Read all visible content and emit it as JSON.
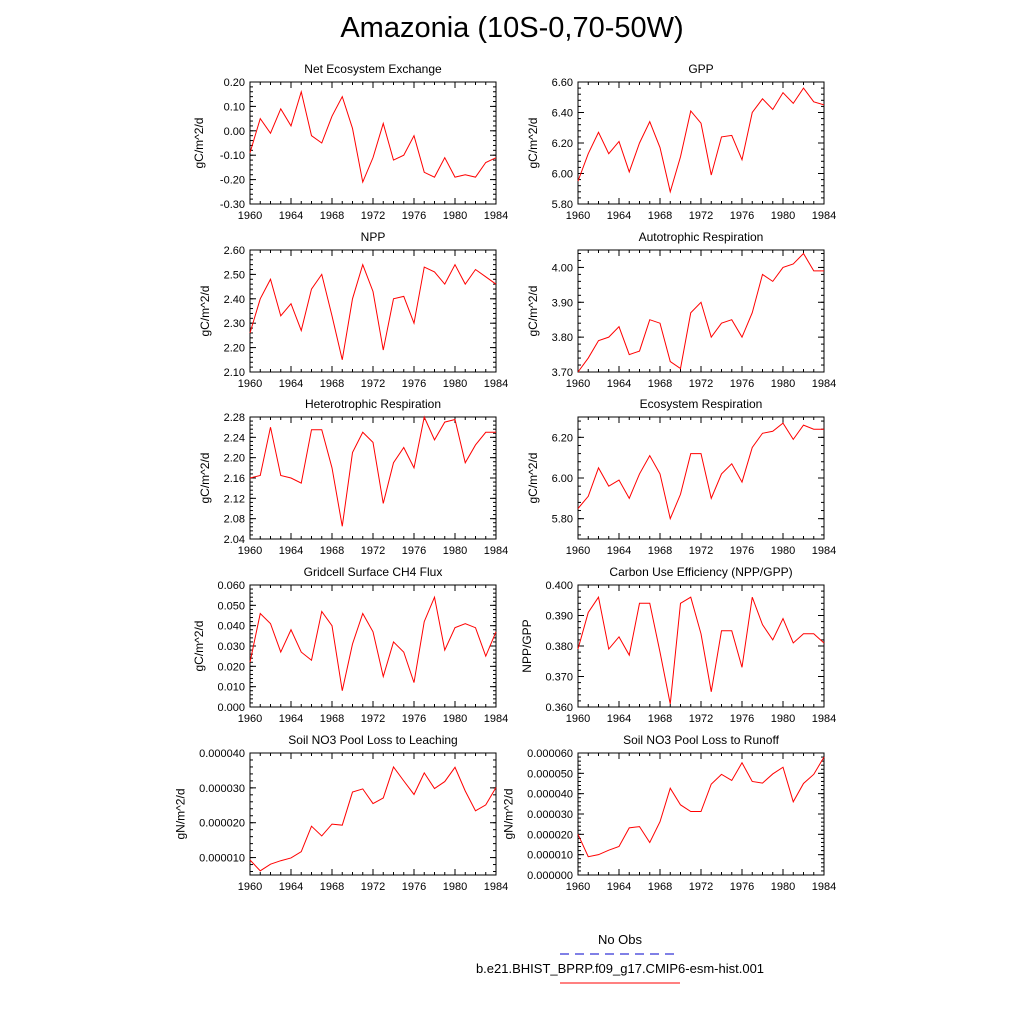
{
  "title": "Amazonia (10S-0,70-50W)",
  "colors": {
    "model": "#ff0000",
    "obs": "#0000cd",
    "axis": "#000000"
  },
  "legend": [
    {
      "label": "No Obs",
      "style": "dashed",
      "color": "#0000cd"
    },
    {
      "label": "b.e21.BHIST_BPRP.f09_g17.CMIP6-esm-hist.001",
      "style": "solid",
      "color": "#ff0000"
    }
  ],
  "chart_data": [
    {
      "type": "line",
      "title": "Net Ecosystem Exchange",
      "ylabel": "gC/m^2/d",
      "xlim": [
        1960,
        1984
      ],
      "xticks": [
        "1960",
        "1964",
        "1968",
        "1972",
        "1976",
        "1980",
        "1984"
      ],
      "ylim": [
        -0.3,
        0.2
      ],
      "yticks": [
        "-0.30",
        "-0.20",
        "-0.10",
        "0.00",
        "0.10",
        "0.20"
      ],
      "x": [
        1960,
        1961,
        1962,
        1963,
        1964,
        1965,
        1966,
        1967,
        1968,
        1969,
        1970,
        1971,
        1972,
        1973,
        1974,
        1975,
        1976,
        1977,
        1978,
        1979,
        1980,
        1981,
        1982,
        1983,
        1984
      ],
      "series": [
        {
          "values": [
            -0.09,
            0.05,
            -0.01,
            0.09,
            0.02,
            0.16,
            -0.02,
            -0.05,
            0.06,
            0.14,
            0.01,
            -0.21,
            -0.11,
            0.03,
            -0.12,
            -0.1,
            -0.02,
            -0.17,
            -0.19,
            -0.11,
            -0.19,
            -0.18,
            -0.19,
            -0.13,
            -0.11
          ]
        }
      ]
    },
    {
      "type": "line",
      "title": "GPP",
      "ylabel": "gC/m^2/d",
      "xlim": [
        1960,
        1984
      ],
      "xticks": [
        "1960",
        "1964",
        "1968",
        "1972",
        "1976",
        "1980",
        "1984"
      ],
      "ylim": [
        5.8,
        6.6
      ],
      "yticks": [
        "5.80",
        "6.00",
        "6.20",
        "6.40",
        "6.60"
      ],
      "x": [
        1960,
        1961,
        1962,
        1963,
        1964,
        1965,
        1966,
        1967,
        1968,
        1969,
        1970,
        1971,
        1972,
        1973,
        1974,
        1975,
        1976,
        1977,
        1978,
        1979,
        1980,
        1981,
        1982,
        1983,
        1984
      ],
      "series": [
        {
          "values": [
            5.95,
            6.13,
            6.27,
            6.13,
            6.21,
            6.01,
            6.2,
            6.34,
            6.17,
            5.88,
            6.11,
            6.41,
            6.33,
            5.99,
            6.24,
            6.25,
            6.09,
            6.4,
            6.49,
            6.42,
            6.53,
            6.46,
            6.56,
            6.47,
            6.45
          ]
        }
      ]
    },
    {
      "type": "line",
      "title": "NPP",
      "ylabel": "gC/m^2/d",
      "xlim": [
        1960,
        1984
      ],
      "xticks": [
        "1960",
        "1964",
        "1968",
        "1972",
        "1976",
        "1980",
        "1984"
      ],
      "ylim": [
        2.1,
        2.6
      ],
      "yticks": [
        "2.10",
        "2.20",
        "2.30",
        "2.40",
        "2.50",
        "2.60"
      ],
      "x": [
        1960,
        1961,
        1962,
        1963,
        1964,
        1965,
        1966,
        1967,
        1968,
        1969,
        1970,
        1971,
        1972,
        1973,
        1974,
        1975,
        1976,
        1977,
        1978,
        1979,
        1980,
        1981,
        1982,
        1983,
        1984
      ],
      "series": [
        {
          "values": [
            2.26,
            2.4,
            2.48,
            2.33,
            2.38,
            2.27,
            2.44,
            2.5,
            2.33,
            2.15,
            2.4,
            2.54,
            2.43,
            2.19,
            2.4,
            2.41,
            2.3,
            2.53,
            2.51,
            2.46,
            2.54,
            2.46,
            2.52,
            2.49,
            2.46
          ]
        }
      ]
    },
    {
      "type": "line",
      "title": "Autotrophic Respiration",
      "ylabel": "gC/m^2/d",
      "xlim": [
        1960,
        1984
      ],
      "xticks": [
        "1960",
        "1964",
        "1968",
        "1972",
        "1976",
        "1980",
        "1984"
      ],
      "ylim": [
        3.7,
        4.05
      ],
      "yticks": [
        "3.70",
        "3.80",
        "3.90",
        "4.00"
      ],
      "x": [
        1960,
        1961,
        1962,
        1963,
        1964,
        1965,
        1966,
        1967,
        1968,
        1969,
        1970,
        1971,
        1972,
        1973,
        1974,
        1975,
        1976,
        1977,
        1978,
        1979,
        1980,
        1981,
        1982,
        1983,
        1984
      ],
      "series": [
        {
          "values": [
            3.7,
            3.74,
            3.79,
            3.8,
            3.83,
            3.75,
            3.76,
            3.85,
            3.84,
            3.73,
            3.71,
            3.87,
            3.9,
            3.8,
            3.84,
            3.85,
            3.8,
            3.87,
            3.98,
            3.96,
            4.0,
            4.01,
            4.04,
            3.99,
            3.99
          ]
        }
      ]
    },
    {
      "type": "line",
      "title": "Heterotrophic Respiration",
      "ylabel": "gC/m^2/d",
      "xlim": [
        1960,
        1984
      ],
      "xticks": [
        "1960",
        "1964",
        "1968",
        "1972",
        "1976",
        "1980",
        "1984"
      ],
      "ylim": [
        2.04,
        2.28
      ],
      "yticks": [
        "2.04",
        "2.08",
        "2.12",
        "2.16",
        "2.20",
        "2.24",
        "2.28"
      ],
      "x": [
        1960,
        1961,
        1962,
        1963,
        1964,
        1965,
        1966,
        1967,
        1968,
        1969,
        1970,
        1971,
        1972,
        1973,
        1974,
        1975,
        1976,
        1977,
        1978,
        1979,
        1980,
        1981,
        1982,
        1983,
        1984
      ],
      "series": [
        {
          "values": [
            2.16,
            2.165,
            2.26,
            2.165,
            2.16,
            2.15,
            2.255,
            2.255,
            2.18,
            2.065,
            2.21,
            2.25,
            2.23,
            2.11,
            2.19,
            2.22,
            2.18,
            2.28,
            2.235,
            2.27,
            2.275,
            2.19,
            2.225,
            2.25,
            2.25
          ]
        }
      ]
    },
    {
      "type": "line",
      "title": "Ecosystem Respiration",
      "ylabel": "gC/m^2/d",
      "xlim": [
        1960,
        1984
      ],
      "xticks": [
        "1960",
        "1964",
        "1968",
        "1972",
        "1976",
        "1980",
        "1984"
      ],
      "ylim": [
        5.7,
        6.3
      ],
      "yticks": [
        "5.80",
        "6.00",
        "6.20"
      ],
      "x": [
        1960,
        1961,
        1962,
        1963,
        1964,
        1965,
        1966,
        1967,
        1968,
        1969,
        1970,
        1971,
        1972,
        1973,
        1974,
        1975,
        1976,
        1977,
        1978,
        1979,
        1980,
        1981,
        1982,
        1983,
        1984
      ],
      "series": [
        {
          "values": [
            5.85,
            5.91,
            6.05,
            5.96,
            5.99,
            5.9,
            6.02,
            6.11,
            6.02,
            5.8,
            5.92,
            6.12,
            6.12,
            5.9,
            6.02,
            6.07,
            5.98,
            6.15,
            6.22,
            6.23,
            6.27,
            6.19,
            6.26,
            6.24,
            6.24
          ]
        }
      ]
    },
    {
      "type": "line",
      "title": "Gridcell Surface CH4 Flux",
      "ylabel": "gC/m^2/d",
      "xlim": [
        1960,
        1984
      ],
      "xticks": [
        "1960",
        "1964",
        "1968",
        "1972",
        "1976",
        "1980",
        "1984"
      ],
      "ylim": [
        0.0,
        0.06
      ],
      "yticks": [
        "0.000",
        "0.010",
        "0.020",
        "0.030",
        "0.040",
        "0.050",
        "0.060"
      ],
      "x": [
        1960,
        1961,
        1962,
        1963,
        1964,
        1965,
        1966,
        1967,
        1968,
        1969,
        1970,
        1971,
        1972,
        1973,
        1974,
        1975,
        1976,
        1977,
        1978,
        1979,
        1980,
        1981,
        1982,
        1983,
        1984
      ],
      "series": [
        {
          "values": [
            0.022,
            0.046,
            0.041,
            0.027,
            0.038,
            0.027,
            0.023,
            0.047,
            0.04,
            0.008,
            0.031,
            0.046,
            0.037,
            0.015,
            0.032,
            0.027,
            0.012,
            0.042,
            0.054,
            0.028,
            0.039,
            0.041,
            0.039,
            0.025,
            0.037
          ]
        }
      ]
    },
    {
      "type": "line",
      "title": "Carbon Use Efficiency (NPP/GPP)",
      "ylabel": "NPP/GPP",
      "xlim": [
        1960,
        1984
      ],
      "xticks": [
        "1960",
        "1964",
        "1968",
        "1972",
        "1976",
        "1980",
        "1984"
      ],
      "ylim": [
        0.36,
        0.4
      ],
      "yticks": [
        "0.360",
        "0.370",
        "0.380",
        "0.390",
        "0.400"
      ],
      "x": [
        1960,
        1961,
        1962,
        1963,
        1964,
        1965,
        1966,
        1967,
        1968,
        1969,
        1970,
        1971,
        1972,
        1973,
        1974,
        1975,
        1976,
        1977,
        1978,
        1979,
        1980,
        1981,
        1982,
        1983,
        1984
      ],
      "series": [
        {
          "values": [
            0.379,
            0.391,
            0.396,
            0.379,
            0.383,
            0.377,
            0.394,
            0.394,
            0.378,
            0.361,
            0.394,
            0.396,
            0.384,
            0.365,
            0.385,
            0.385,
            0.373,
            0.396,
            0.387,
            0.382,
            0.389,
            0.381,
            0.384,
            0.384,
            0.381
          ]
        }
      ]
    },
    {
      "type": "line",
      "title": "Soil NO3 Pool Loss to Leaching",
      "ylabel": "gN/m^2/d",
      "xlim": [
        1960,
        1984
      ],
      "xticks": [
        "1960",
        "1964",
        "1968",
        "1972",
        "1976",
        "1980",
        "1984"
      ],
      "ylim": [
        5e-06,
        4e-05
      ],
      "yticks": [
        "0.000010",
        "0.000020",
        "0.000030",
        "0.000040"
      ],
      "x": [
        1960,
        1961,
        1962,
        1963,
        1964,
        1965,
        1966,
        1967,
        1968,
        1969,
        1970,
        1971,
        1972,
        1973,
        1974,
        1975,
        1976,
        1977,
        1978,
        1979,
        1980,
        1981,
        1982,
        1983,
        1984
      ],
      "series": [
        {
          "values": [
            9.3e-06,
            6.2e-06,
            8.1e-06,
            9.1e-06,
            9.9e-06,
            1.17e-05,
            1.9e-05,
            1.62e-05,
            1.96e-05,
            1.93e-05,
            2.88e-05,
            2.97e-05,
            2.55e-05,
            2.71e-05,
            3.6e-05,
            3.2e-05,
            2.81e-05,
            3.43e-05,
            2.98e-05,
            3.18e-05,
            3.59e-05,
            2.91e-05,
            2.34e-05,
            2.51e-05,
            3.01e-05
          ]
        }
      ]
    },
    {
      "type": "line",
      "title": "Soil NO3 Pool Loss to Runoff",
      "ylabel": "gN/m^2/d",
      "xlim": [
        1960,
        1984
      ],
      "xticks": [
        "1960",
        "1964",
        "1968",
        "1972",
        "1976",
        "1980",
        "1984"
      ],
      "ylim": [
        0.0,
        6e-05
      ],
      "yticks": [
        "0.000000",
        "0.000010",
        "0.000020",
        "0.000030",
        "0.000040",
        "0.000050",
        "0.000060"
      ],
      "x": [
        1960,
        1961,
        1962,
        1963,
        1964,
        1965,
        1966,
        1967,
        1968,
        1969,
        1970,
        1971,
        1972,
        1973,
        1974,
        1975,
        1976,
        1977,
        1978,
        1979,
        1980,
        1981,
        1982,
        1983,
        1984
      ],
      "series": [
        {
          "values": [
            2e-05,
            9e-06,
            1e-05,
            1.22e-05,
            1.4e-05,
            2.32e-05,
            2.38e-05,
            1.6e-05,
            2.62e-05,
            4.27e-05,
            3.45e-05,
            3.12e-05,
            3.12e-05,
            4.47e-05,
            4.95e-05,
            4.65e-05,
            5.52e-05,
            4.6e-05,
            4.52e-05,
            4.97e-05,
            5.3e-05,
            3.6e-05,
            4.5e-05,
            4.95e-05,
            5.8e-05
          ]
        }
      ]
    }
  ]
}
